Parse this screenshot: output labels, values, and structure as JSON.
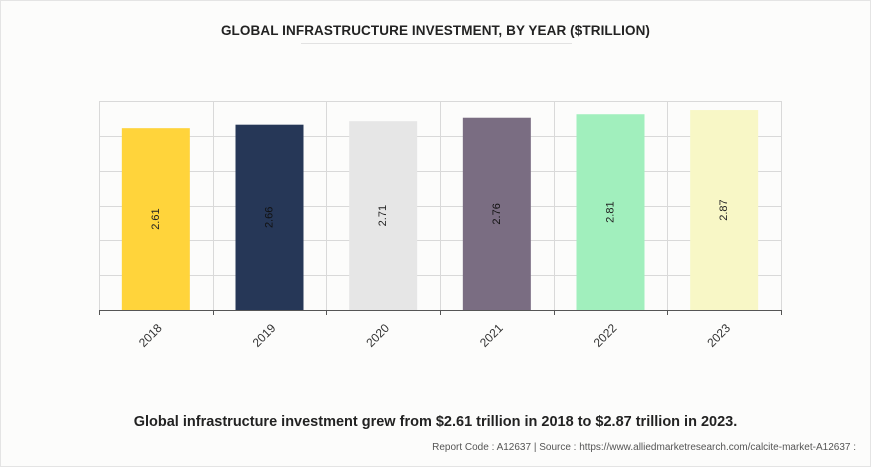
{
  "chart_data": {
    "type": "bar",
    "title": "GLOBAL INFRASTRUCTURE INVESTMENT, BY YEAR ($TRILLION)",
    "categories": [
      "2018",
      "2019",
      "2020",
      "2021",
      "2022",
      "2023"
    ],
    "values": [
      2.61,
      2.66,
      2.71,
      2.76,
      2.81,
      2.87
    ],
    "value_labels": [
      "2.61",
      "2.66",
      "2.71",
      "2.76",
      "2.81",
      "2.87"
    ],
    "bar_colors": [
      "#ffd43b",
      "#263757",
      "#e6e6e6",
      "#7a6d82",
      "#a1efbd",
      "#f8f7c6"
    ],
    "label_colors": [
      "#222222",
      "#111111",
      "#222222",
      "#111111",
      "#222222",
      "#222222"
    ],
    "ylim": [
      0,
      3.0
    ],
    "y_gridlines": [
      0.5,
      1.0,
      1.5,
      2.0,
      2.5,
      3.0
    ],
    "grid": true,
    "legend": "none",
    "y_tick_labels_shown": false
  },
  "caption": "Global infrastructure investment grew from $2.61 trillion in 2018 to $2.87 trillion in 2023.",
  "source_line": "Report Code : A12637  |  Source : https://www.alliedmarketresearch.com/calcite-market-A12637 :"
}
